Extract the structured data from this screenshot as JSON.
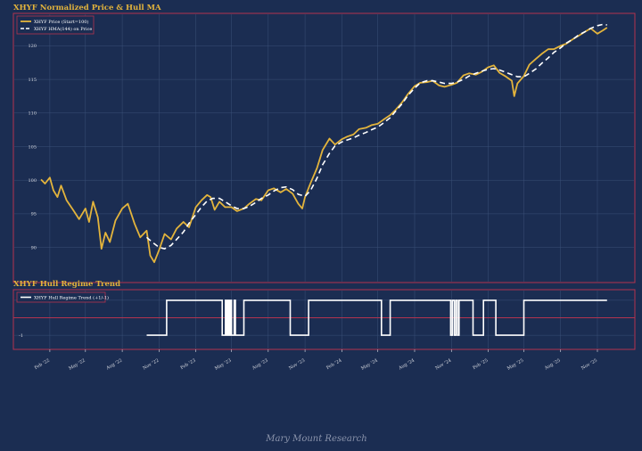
{
  "colors": {
    "background": "#1b2d52",
    "frame": "#b3334f",
    "title": "#e3b43c",
    "price": "#e3b43c",
    "hma": "#ffffff",
    "trend": "#ffffff",
    "zero_line": "#b3334f",
    "grid": "#3b5078",
    "tick": "#d9dbe2",
    "footer": "#8a93ab"
  },
  "footer": "Mary Mount Research",
  "chart_data": [
    {
      "type": "line",
      "title": "XHYF Normalized Price & Hull MA",
      "legend_position": "upper left",
      "grid": true,
      "ylim": [
        86.5,
        123.5
      ],
      "y_ticks": [
        90,
        95,
        100,
        105,
        110,
        115,
        120
      ],
      "x_range": [
        "2022-01-01",
        "2025-11-30"
      ],
      "series": [
        {
          "name": "XHYF Price (Start=100)",
          "x": [
            "2022-01-10",
            "2022-01-20",
            "2022-02-01",
            "2022-02-10",
            "2022-02-20",
            "2022-03-01",
            "2022-03-15",
            "2022-04-01",
            "2022-04-15",
            "2022-05-01",
            "2022-05-10",
            "2022-05-20",
            "2022-06-01",
            "2022-06-10",
            "2022-06-20",
            "2022-07-01",
            "2022-07-15",
            "2022-08-01",
            "2022-08-15",
            "2022-09-01",
            "2022-09-15",
            "2022-10-01",
            "2022-10-10",
            "2022-10-20",
            "2022-11-01",
            "2022-11-15",
            "2022-12-01",
            "2022-12-15",
            "2023-01-01",
            "2023-01-15",
            "2023-02-01",
            "2023-02-15",
            "2023-03-01",
            "2023-03-10",
            "2023-03-20",
            "2023-04-01",
            "2023-04-15",
            "2023-05-01",
            "2023-05-15",
            "2023-06-01",
            "2023-06-15",
            "2023-07-01",
            "2023-07-15",
            "2023-08-01",
            "2023-08-15",
            "2023-09-01",
            "2023-09-15",
            "2023-10-01",
            "2023-10-15",
            "2023-10-25",
            "2023-11-01",
            "2023-11-15",
            "2023-12-01",
            "2023-12-15",
            "2024-01-01",
            "2024-01-15",
            "2024-02-01",
            "2024-02-15",
            "2024-03-01",
            "2024-03-15",
            "2024-04-01",
            "2024-04-15",
            "2024-05-01",
            "2024-05-15",
            "2024-06-01",
            "2024-06-15",
            "2024-07-01",
            "2024-07-15",
            "2024-08-01",
            "2024-08-15",
            "2024-09-01",
            "2024-09-15",
            "2024-10-01",
            "2024-10-15",
            "2024-11-01",
            "2024-11-15",
            "2024-12-01",
            "2024-12-15",
            "2025-01-01",
            "2025-01-15",
            "2025-02-01",
            "2025-02-15",
            "2025-03-01",
            "2025-03-15",
            "2025-04-01",
            "2025-04-07",
            "2025-04-15",
            "2025-05-01",
            "2025-05-15",
            "2025-06-01",
            "2025-06-15",
            "2025-07-01",
            "2025-07-15",
            "2025-08-01",
            "2025-08-15",
            "2025-09-01",
            "2025-09-15",
            "2025-10-01",
            "2025-10-15",
            "2025-11-01",
            "2025-11-15",
            "2025-11-25"
          ],
          "values": [
            100.1,
            99.5,
            100.4,
            98.5,
            97.5,
            99.2,
            97.0,
            95.5,
            94.2,
            95.8,
            93.8,
            96.8,
            94.5,
            89.8,
            92.2,
            90.8,
            94.0,
            95.8,
            96.5,
            93.5,
            91.5,
            92.5,
            88.8,
            87.8,
            89.6,
            92.0,
            91.2,
            92.8,
            93.8,
            93.0,
            96.0,
            97.0,
            97.8,
            97.5,
            95.6,
            96.8,
            96.0,
            96.0,
            95.4,
            95.8,
            96.5,
            97.2,
            97.0,
            98.5,
            98.8,
            98.2,
            98.7,
            98.0,
            96.5,
            95.8,
            97.5,
            99.6,
            101.8,
            104.5,
            106.2,
            105.3,
            106.1,
            106.5,
            106.8,
            107.6,
            107.8,
            108.2,
            108.4,
            109.0,
            109.7,
            110.5,
            111.6,
            112.8,
            114.0,
            114.5,
            114.6,
            114.8,
            114.1,
            113.9,
            114.2,
            114.5,
            115.6,
            115.9,
            115.7,
            116.1,
            116.8,
            117.1,
            116.0,
            115.5,
            114.8,
            112.5,
            114.4,
            115.5,
            117.2,
            118.1,
            118.8,
            119.5,
            119.5,
            120.0,
            120.3,
            121.0,
            121.5,
            122.1,
            122.6,
            121.8,
            122.3,
            122.7
          ]
        },
        {
          "name": "XHYF HMA(144) on Price",
          "x": [
            "2022-10-01",
            "2022-10-15",
            "2022-11-01",
            "2022-11-15",
            "2022-12-01",
            "2022-12-15",
            "2023-01-01",
            "2023-01-15",
            "2023-02-01",
            "2023-02-15",
            "2023-03-01",
            "2023-03-15",
            "2023-04-01",
            "2023-04-15",
            "2023-05-01",
            "2023-05-15",
            "2023-06-01",
            "2023-06-15",
            "2023-07-01",
            "2023-07-15",
            "2023-08-01",
            "2023-08-15",
            "2023-09-01",
            "2023-09-15",
            "2023-10-01",
            "2023-10-15",
            "2023-11-01",
            "2023-11-15",
            "2023-12-01",
            "2023-12-15",
            "2024-01-01",
            "2024-01-15",
            "2024-02-01",
            "2024-02-15",
            "2024-03-01",
            "2024-03-15",
            "2024-04-01",
            "2024-04-15",
            "2024-05-01",
            "2024-05-15",
            "2024-06-01",
            "2024-06-15",
            "2024-07-01",
            "2024-07-15",
            "2024-08-01",
            "2024-08-15",
            "2024-09-01",
            "2024-09-15",
            "2024-10-01",
            "2024-10-15",
            "2024-11-01",
            "2024-11-15",
            "2024-12-01",
            "2024-12-15",
            "2025-01-01",
            "2025-01-15",
            "2025-02-01",
            "2025-02-15",
            "2025-03-01",
            "2025-03-15",
            "2025-04-01",
            "2025-04-15",
            "2025-05-01",
            "2025-05-15",
            "2025-06-01",
            "2025-06-15",
            "2025-07-01",
            "2025-07-15",
            "2025-08-01",
            "2025-08-15",
            "2025-09-01",
            "2025-09-15",
            "2025-10-01",
            "2025-10-15",
            "2025-11-01",
            "2025-11-15",
            "2025-11-25"
          ],
          "values": [
            91.5,
            90.8,
            90.0,
            89.8,
            90.3,
            91.2,
            92.3,
            93.6,
            94.9,
            96.0,
            96.9,
            97.3,
            97.3,
            96.8,
            96.2,
            95.8,
            95.8,
            96.1,
            96.7,
            97.3,
            97.8,
            98.4,
            98.9,
            99.0,
            98.6,
            97.9,
            97.6,
            98.5,
            100.3,
            102.3,
            104.0,
            105.1,
            105.7,
            106.0,
            106.3,
            106.7,
            107.1,
            107.5,
            107.9,
            108.5,
            109.3,
            110.3,
            111.4,
            112.6,
            113.7,
            114.5,
            114.8,
            114.8,
            114.6,
            114.4,
            114.4,
            114.6,
            115.0,
            115.5,
            115.9,
            116.2,
            116.5,
            116.6,
            116.4,
            116.1,
            115.7,
            115.4,
            115.4,
            115.9,
            116.6,
            117.4,
            118.2,
            119.0,
            119.7,
            120.4,
            121.0,
            121.6,
            122.1,
            122.6,
            123.0,
            123.2,
            123.1
          ]
        }
      ]
    },
    {
      "type": "line",
      "title": "XHYF Hull Regime Trend",
      "legend_position": "upper left",
      "grid": true,
      "ylim": [
        -1.35,
        1.35
      ],
      "y_ticks": [
        -1,
        0,
        1
      ],
      "x_ticks": [
        "Feb '22",
        "May '22",
        "Aug '22",
        "Nov '22",
        "Feb '23",
        "May '23",
        "Aug '23",
        "Nov '23",
        "Feb '24",
        "May '24",
        "Aug '24",
        "Nov '24",
        "Feb '25",
        "May '25",
        "Aug '25",
        "Nov '25"
      ],
      "series": [
        {
          "name": "XHYF Hull Regime Trend (+1/-1)",
          "x": [
            "2022-10-01",
            "2022-11-20",
            "2023-04-08",
            "2023-04-16",
            "2023-04-18",
            "2023-04-20",
            "2023-04-22",
            "2023-04-24",
            "2023-04-26",
            "2023-04-28",
            "2023-05-01",
            "2023-05-08",
            "2023-05-11",
            "2023-05-14",
            "2023-06-01",
            "2023-07-01",
            "2023-09-25",
            "2023-11-10",
            "2024-05-10",
            "2024-06-01",
            "2024-10-30",
            "2024-11-03",
            "2024-11-08",
            "2024-11-12",
            "2024-11-16",
            "2024-11-20",
            "2024-12-25",
            "2025-01-20",
            "2025-02-20",
            "2025-04-03",
            "2025-05-01",
            "2025-11-25"
          ],
          "values": [
            -1,
            1,
            -1,
            1,
            -1,
            1,
            -1,
            1,
            -1,
            1,
            -1,
            1,
            -1,
            -1,
            1,
            1,
            -1,
            1,
            -1,
            1,
            -1,
            1,
            -1,
            1,
            -1,
            1,
            -1,
            1,
            -1,
            -1,
            1,
            1
          ]
        }
      ]
    }
  ]
}
